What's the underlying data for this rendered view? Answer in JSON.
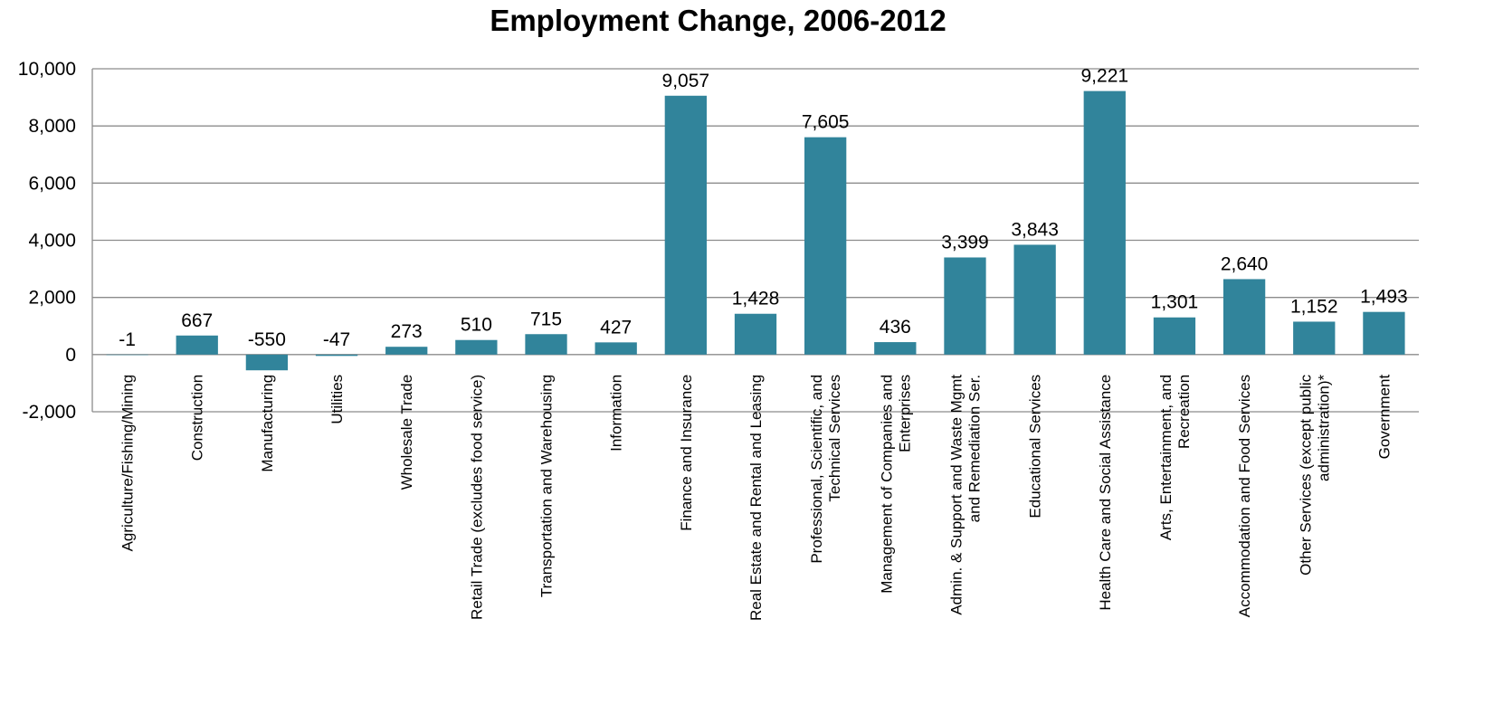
{
  "chart_data": {
    "type": "bar",
    "title": "Employment Change, 2006-2012",
    "xlabel": "",
    "ylabel": "",
    "ylim": [
      -2000,
      10000
    ],
    "yticks": [
      -2000,
      0,
      2000,
      4000,
      6000,
      8000,
      10000
    ],
    "ytick_labels": [
      "-2,000",
      "0",
      "2,000",
      "4,000",
      "6,000",
      "8,000",
      "10,000"
    ],
    "grid": true,
    "legend": "none",
    "bar_color": "#31849b",
    "categories": [
      "Agriculture/Fishing/Mining",
      "Construction",
      "Manufacturing",
      "Utilities",
      "Wholesale Trade",
      "Retail Trade (excludes food service)",
      "Transportation and Warehousing",
      "Information",
      "Finance and Insurance",
      "Real Estate and Rental and Leasing",
      "Professional, Scientific, and Technical Services",
      "Management of Companies and Enterprises",
      "Admin. & Support and Waste Mgmt and Remediation Ser.",
      "Educational Services",
      "Health Care and Social Assistance",
      "Arts, Entertainment, and Recreation",
      "Accommodation and Food Services",
      "Other Services (except public administration)*",
      "Government"
    ],
    "category_lines": [
      [
        "Agriculture/Fishing/Mining"
      ],
      [
        "Construction"
      ],
      [
        "Manufacturing"
      ],
      [
        "Utilities"
      ],
      [
        "Wholesale Trade"
      ],
      [
        "Retail Trade (excludes food service)"
      ],
      [
        "Transportation and Warehousing"
      ],
      [
        "Information"
      ],
      [
        "Finance and Insurance"
      ],
      [
        "Real Estate and Rental and Leasing"
      ],
      [
        "Professional, Scientific, and",
        "Technical Services"
      ],
      [
        "Management of Companies and",
        "Enterprises"
      ],
      [
        "Admin. & Support and Waste Mgmt",
        "and Remediation Ser."
      ],
      [
        "Educational Services"
      ],
      [
        "Health Care and Social Assistance"
      ],
      [
        "Arts, Entertainment, and",
        "Recreation"
      ],
      [
        "Accommodation and Food Services"
      ],
      [
        "Other Services (except public",
        "administration)*"
      ],
      [
        "Government"
      ]
    ],
    "values": [
      -1,
      667,
      -550,
      -47,
      273,
      510,
      715,
      427,
      9057,
      1428,
      7605,
      436,
      3399,
      3843,
      9221,
      1301,
      2640,
      1152,
      1493
    ],
    "data_labels": [
      "-1",
      "667",
      "-550",
      "-47",
      "273",
      "510",
      "715",
      "427",
      "9,057",
      "1,428",
      "7,605",
      "436",
      "3,399",
      "3,843",
      "9,221",
      "1,301",
      "2,640",
      "1,152",
      "1,493"
    ]
  }
}
